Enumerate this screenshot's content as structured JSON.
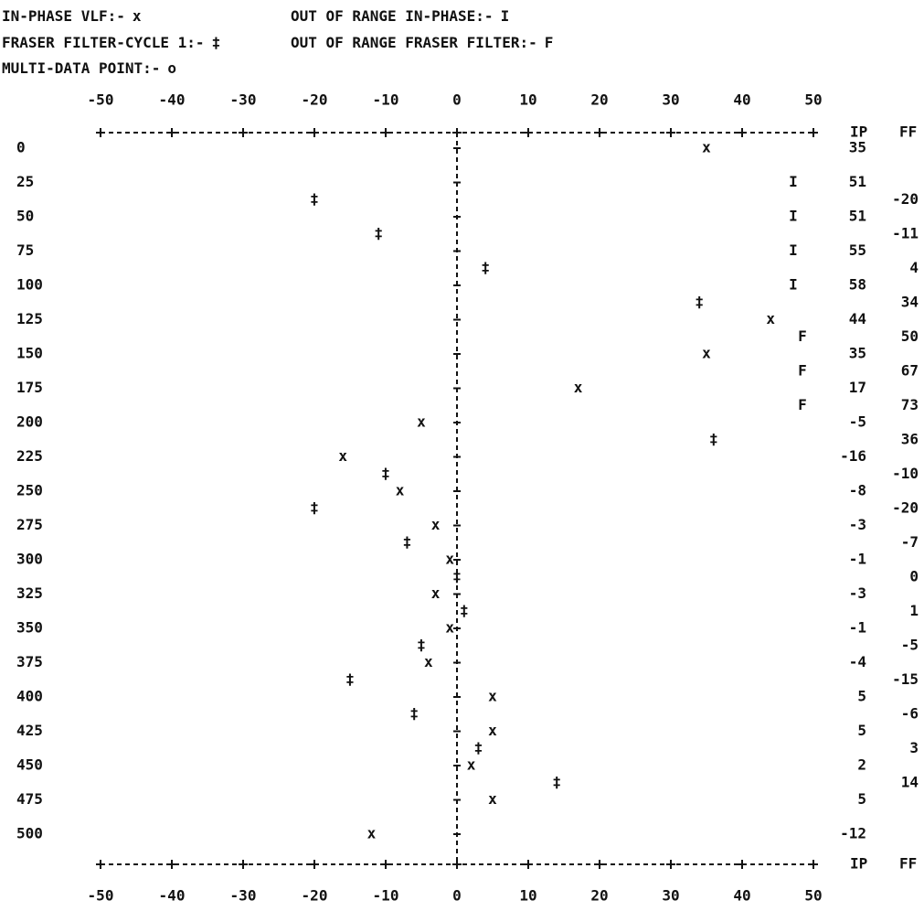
{
  "legend": [
    {
      "label": "IN-PHASE VLF:-",
      "symbol": "x"
    },
    {
      "label": "OUT OF RANGE IN-PHASE:-",
      "symbol": "I"
    },
    {
      "label": "FRASER FILTER-CYCLE 1:-",
      "symbol": "‡"
    },
    {
      "label": "OUT OF RANGE FRASER FILTER:-",
      "symbol": "F"
    },
    {
      "label": "MULTI-DATA POINT:-",
      "symbol": "o"
    }
  ],
  "chart_data": {
    "type": "scatter",
    "xlim": [
      -50,
      50
    ],
    "xticks": [
      -50,
      -40,
      -30,
      -20,
      -10,
      0,
      10,
      20,
      30,
      40,
      50
    ],
    "columns": [
      "IP",
      "FF"
    ],
    "stations": [
      0,
      25,
      50,
      75,
      100,
      125,
      150,
      175,
      200,
      225,
      250,
      275,
      300,
      325,
      350,
      375,
      400,
      425,
      450,
      475,
      500
    ],
    "in_phase": [
      35,
      51,
      51,
      55,
      58,
      44,
      35,
      17,
      -5,
      -16,
      -8,
      -3,
      -1,
      -3,
      -1,
      -4,
      5,
      5,
      2,
      5,
      -12
    ],
    "fraser_filter": [
      -20,
      -11,
      4,
      34,
      50,
      67,
      73,
      36,
      -10,
      -20,
      -7,
      0,
      1,
      -5,
      -15,
      -6,
      3,
      14
    ]
  }
}
